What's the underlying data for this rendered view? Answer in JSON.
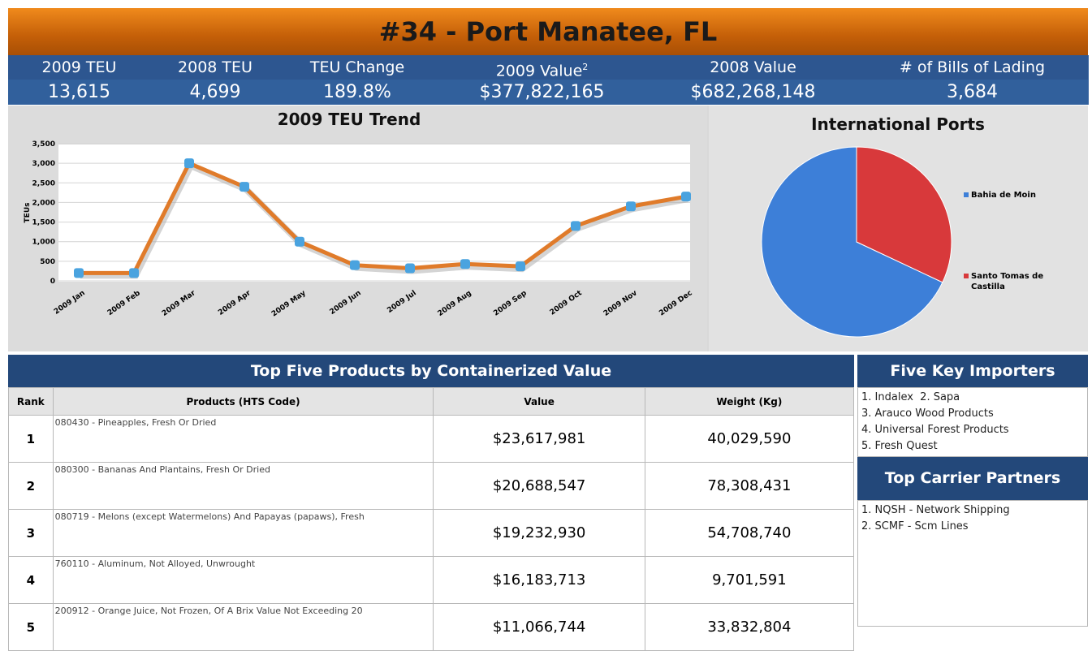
{
  "title": "#34 - Port Manatee, FL",
  "stats": [
    {
      "label": "2009 TEU",
      "value": "13,615"
    },
    {
      "label": "2008 TEU",
      "value": "4,699"
    },
    {
      "label": "TEU Change",
      "value": "189.8%"
    },
    {
      "label": "2009 Value",
      "footnote": "2",
      "value": "$377,822,165"
    },
    {
      "label": "2008 Value",
      "value": "$682,268,148"
    },
    {
      "label": "# of Bills of Lading",
      "value": "3,684"
    }
  ],
  "chart_data": [
    {
      "type": "line",
      "title": "2009 TEU Trend",
      "y_label": "TEUs",
      "categories": [
        "2009 Jan",
        "2009 Feb",
        "2009 Mar",
        "2009 Apr",
        "2009 May",
        "2009 Jun",
        "2009 Jul",
        "2009 Aug",
        "2009 Sep",
        "2009 Oct",
        "2009 Nov",
        "2009 Dec"
      ],
      "values": [
        200,
        200,
        3000,
        2400,
        1000,
        400,
        320,
        430,
        370,
        1400,
        1900,
        2150
      ],
      "color": "#e07b2a",
      "marker_color": "#4aa3df",
      "ylim": [
        0,
        3500
      ],
      "yticks": [
        0,
        500,
        {
          "value": 1000,
          "label": "1,000"
        },
        {
          "value": 1500,
          "label": "1,500"
        },
        {
          "value": 2000,
          "label": "2,000"
        },
        {
          "value": 2500,
          "label": "2,500"
        },
        {
          "value": 3000,
          "label": "3,000"
        },
        {
          "value": 3500,
          "label": "3,500"
        }
      ],
      "grid": true
    },
    {
      "type": "pie",
      "title": "International Ports",
      "legend": "right",
      "series": [
        {
          "name": "Bahia de Moin",
          "color": "#3d7fd8",
          "values": [
            68
          ]
        },
        {
          "name": "Santo Tomas de Castilla",
          "color": "#d8393b",
          "values": [
            32
          ]
        }
      ]
    }
  ],
  "products_table": {
    "title": "Top Five Products by Containerized Value",
    "columns": [
      "Rank",
      "Products (HTS Code)",
      "Value",
      "Weight (Kg)"
    ],
    "rows": [
      [
        "1",
        "080430 - Pineapples, Fresh Or Dried",
        "$23,617,981",
        "40,029,590"
      ],
      [
        "2",
        "080300 - Bananas And Plantains, Fresh Or Dried",
        "$20,688,547",
        "78,308,431"
      ],
      [
        "3",
        "080719 - Melons (except Watermelons) And Papayas (papaws), Fresh",
        "$19,232,930",
        "54,708,740"
      ],
      [
        "4",
        "760110 - Aluminum, Not Alloyed, Unwrought",
        "$16,183,713",
        "9,701,591"
      ],
      [
        "5",
        "200912 - Orange Juice, Not Frozen, Of A Brix Value Not Exceeding 20",
        "$11,066,744",
        "33,832,804"
      ]
    ]
  },
  "importers": {
    "title": "Five Key Importers",
    "items": [
      "1. Indalex  2. Sapa",
      "3. Arauco Wood Products",
      "4. Universal Forest Products",
      "5. Fresh Quest"
    ]
  },
  "carriers": {
    "title": "Top Carrier Partners",
    "items": [
      "1. NQSH - Network Shipping",
      "2. SCMF - Scm Lines"
    ]
  }
}
